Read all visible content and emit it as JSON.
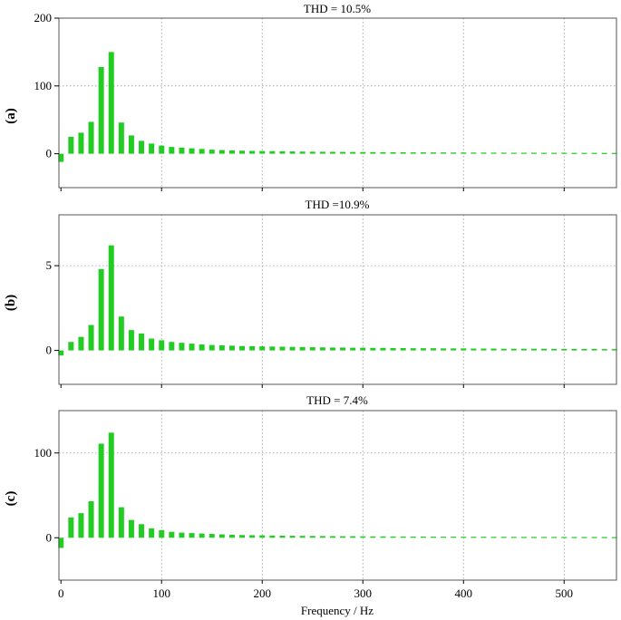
{
  "chart_data": [
    {
      "type": "bar",
      "panel_label": "(a)",
      "title": "THD = 10.5%",
      "xlim": [
        -2,
        552
      ],
      "ylim": [
        -50,
        200
      ],
      "yticks": [
        0,
        100,
        200
      ],
      "xticks": [
        0,
        100,
        200,
        300,
        400,
        500
      ],
      "grid": true,
      "bar_color": "#22cc22",
      "x": [
        0,
        10,
        20,
        30,
        40,
        50,
        60,
        70,
        80,
        90,
        100,
        110,
        120,
        130,
        140,
        150,
        160,
        170,
        180,
        190,
        200,
        210,
        220,
        230,
        240,
        250,
        260,
        270,
        280,
        290,
        300,
        310,
        320,
        330,
        340,
        350,
        360,
        370,
        380,
        390,
        400,
        410,
        420,
        430,
        440,
        450,
        460,
        470,
        480,
        490,
        500,
        510,
        520,
        530,
        540,
        550
      ],
      "values": [
        -12,
        25,
        31,
        47,
        128,
        150,
        46,
        27,
        19,
        15,
        12,
        10,
        9,
        8,
        7,
        6,
        5.5,
        5,
        4.5,
        4.2,
        4,
        3.8,
        3.6,
        3.4,
        3.2,
        3,
        2.9,
        2.8,
        2.7,
        2.6,
        2.5,
        2.4,
        2.3,
        2.2,
        2.1,
        2,
        2,
        1.9,
        1.9,
        1.8,
        1.8,
        1.7,
        1.7,
        1.6,
        1.6,
        1.5,
        1.5,
        1.5,
        1.4,
        1.4,
        1.4,
        1.3,
        1.3,
        1.3,
        1.2,
        1.2
      ]
    },
    {
      "type": "bar",
      "panel_label": "(b)",
      "title": "THD =10.9%",
      "xlim": [
        -2,
        552
      ],
      "ylim": [
        -2,
        8
      ],
      "yticks": [
        0,
        5
      ],
      "xticks": [
        0,
        100,
        200,
        300,
        400,
        500
      ],
      "grid": true,
      "bar_color": "#22cc22",
      "x": [
        0,
        10,
        20,
        30,
        40,
        50,
        60,
        70,
        80,
        90,
        100,
        110,
        120,
        130,
        140,
        150,
        160,
        170,
        180,
        190,
        200,
        210,
        220,
        230,
        240,
        250,
        260,
        270,
        280,
        290,
        300,
        310,
        320,
        330,
        340,
        350,
        360,
        370,
        380,
        390,
        400,
        410,
        420,
        430,
        440,
        450,
        460,
        470,
        480,
        490,
        500,
        510,
        520,
        530,
        540,
        550
      ],
      "values": [
        -0.3,
        0.5,
        0.8,
        1.5,
        4.8,
        6.2,
        2.0,
        1.2,
        1.0,
        0.7,
        0.6,
        0.5,
        0.45,
        0.4,
        0.35,
        0.32,
        0.3,
        0.28,
        0.26,
        0.25,
        0.24,
        0.23,
        0.22,
        0.21,
        0.2,
        0.19,
        0.18,
        0.17,
        0.17,
        0.16,
        0.16,
        0.15,
        0.15,
        0.14,
        0.14,
        0.13,
        0.13,
        0.13,
        0.12,
        0.12,
        0.12,
        0.11,
        0.11,
        0.11,
        0.1,
        0.1,
        0.1,
        0.1,
        0.1,
        0.09,
        0.09,
        0.09,
        0.09,
        0.09,
        0.08,
        0.08
      ]
    },
    {
      "type": "bar",
      "panel_label": "(c)",
      "title": "THD = 7.4%",
      "xlim": [
        -2,
        552
      ],
      "ylim": [
        -50,
        150
      ],
      "yticks": [
        0,
        100
      ],
      "xticks": [
        0,
        100,
        200,
        300,
        400,
        500
      ],
      "xlabel": "Frequency / Hz",
      "grid": true,
      "bar_color": "#22cc22",
      "x": [
        0,
        10,
        20,
        30,
        40,
        50,
        60,
        70,
        80,
        90,
        100,
        110,
        120,
        130,
        140,
        150,
        160,
        170,
        180,
        190,
        200,
        210,
        220,
        230,
        240,
        250,
        260,
        270,
        280,
        290,
        300,
        310,
        320,
        330,
        340,
        350,
        360,
        370,
        380,
        390,
        400,
        410,
        420,
        430,
        440,
        450,
        460,
        470,
        480,
        490,
        500,
        510,
        520,
        530,
        540,
        550
      ],
      "values": [
        -12,
        24,
        29,
        43,
        111,
        124,
        36,
        21,
        16,
        11,
        9,
        7,
        6,
        5.5,
        5,
        4.5,
        4,
        3.5,
        3.2,
        3,
        2.8,
        2.6,
        2.4,
        2.3,
        2.2,
        2.1,
        2,
        1.9,
        1.8,
        1.8,
        1.7,
        1.6,
        1.6,
        1.5,
        1.5,
        1.4,
        1.4,
        1.3,
        1.3,
        1.3,
        1.2,
        1.2,
        1.2,
        1.1,
        1.1,
        1.1,
        1,
        1,
        1,
        1,
        0.9,
        0.9,
        0.9,
        0.9,
        0.9,
        0.8
      ]
    }
  ]
}
